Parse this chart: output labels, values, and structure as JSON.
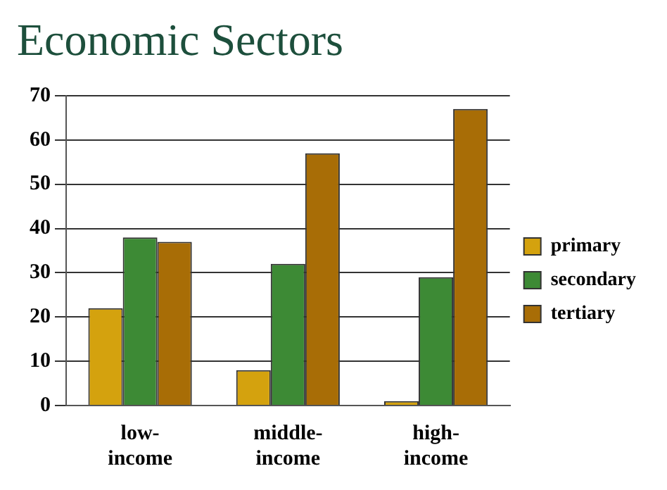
{
  "chart_data": {
    "type": "bar",
    "title": "Economic Sectors",
    "categories": [
      "low-income",
      "middle-income",
      "high-income"
    ],
    "series": [
      {
        "name": "primary",
        "color": "#d4a20e",
        "values": [
          22,
          8,
          1
        ]
      },
      {
        "name": "secondary",
        "color": "#3d8a35",
        "values": [
          38,
          32,
          29
        ]
      },
      {
        "name": "tertiary",
        "color": "#a86d06",
        "values": [
          37,
          57,
          67
        ]
      }
    ],
    "ylim": [
      0,
      70
    ],
    "yticks": [
      0,
      10,
      20,
      30,
      40,
      50,
      60,
      70
    ],
    "grid": "y",
    "legend": "right"
  }
}
